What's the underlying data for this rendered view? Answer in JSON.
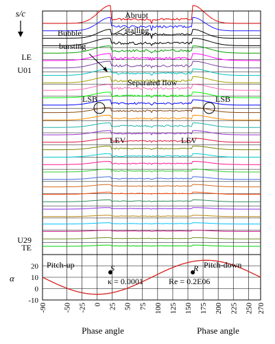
{
  "chart_data": {
    "type": "line",
    "panels": {
      "upper": {
        "description_free": true,
        "yaxis_label": "s/c",
        "row_labels": {
          "LE": "LE",
          "U01": "U01",
          "U29": "U29",
          "TE": "TE"
        },
        "series_count": 31,
        "annotations": {
          "abrupt_stalling": [
            "Abrupt",
            "stalling"
          ],
          "bubble_bursting": [
            "Bubble",
            "bursting"
          ],
          "separated_flow": "Separated flow",
          "lsb_left": "LSB",
          "lsb_right": "LSB",
          "lev_left": "LEV",
          "lev_right": "LEV"
        },
        "series_colors": [
          "#e00000",
          "#1a1aff",
          "#000000",
          "#000000",
          "#00a000",
          "#ff00ff",
          "#7a3fa0",
          "#00c0c0",
          "#a0a000",
          "#ff69b4",
          "#00ff00",
          "#0000ff",
          "#8b4513",
          "#ff8c00",
          "#20b2aa",
          "#9932cc",
          "#dc143c",
          "#808000",
          "#00ced1",
          "#ff1493",
          "#32cd32",
          "#4169e1",
          "#d2691e",
          "#ff4500",
          "#2e8b57",
          "#8a2be2",
          "#b8860b",
          "#00bfff",
          "#c71585",
          "#6b8e23",
          "#00d000"
        ]
      },
      "lower": {
        "ylabel": "α",
        "yticks": [
          -10,
          0,
          10,
          20
        ],
        "ylim": [
          -10,
          30
        ],
        "left_label": "Pitch-up",
        "right_label": "Pitch-down",
        "point_s": "S",
        "point_r": "R",
        "kappa": "κ = 0.0001",
        "re": "Re = 0.2E06",
        "curve": {
          "mean": 10,
          "amplitude": 15,
          "phase_offset_deg": -90,
          "color": "#d42020"
        },
        "points": [
          {
            "label": "S",
            "x": 22,
            "y": 14.3
          },
          {
            "label": "R",
            "x": 158,
            "y": 14.3
          }
        ]
      }
    },
    "x": {
      "xlabel_left": "Phase angle",
      "xlabel_right": "Phase angle",
      "xticks": [
        -90,
        -50,
        -25,
        0,
        25,
        50,
        75,
        100,
        125,
        150,
        175,
        200,
        225,
        250,
        270
      ],
      "xlim": [
        -90,
        270
      ]
    }
  }
}
